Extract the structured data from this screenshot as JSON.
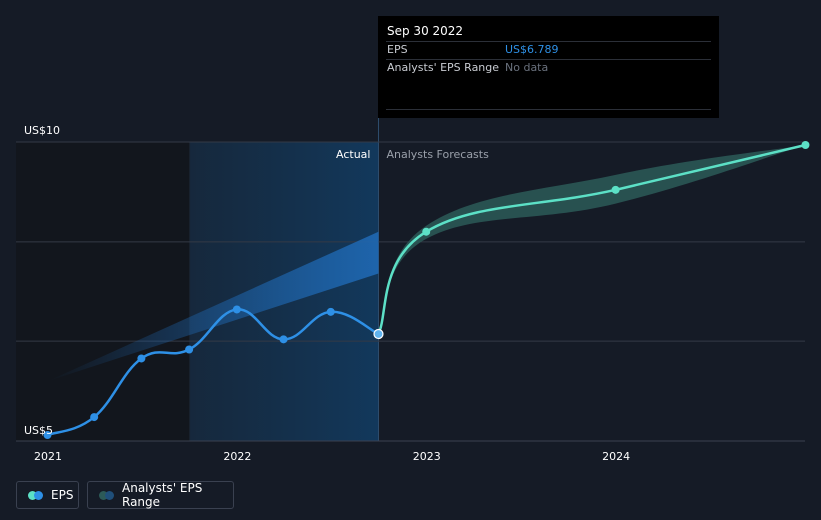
{
  "tooltip": {
    "date": "Sep 30 2022",
    "eps_label": "EPS",
    "eps_value": "US$6.789",
    "range_label": "Analysts' EPS Range",
    "range_value": "No data"
  },
  "colors": {
    "background": "#151b26",
    "actual": "#2e90e6",
    "forecast": "#5ce0c6",
    "forecast_band": "#2c5a58",
    "past_range_band": "#1f69b4"
  },
  "legend": {
    "eps_label": "EPS",
    "range_label": "Analysts' EPS Range"
  },
  "chart_data": {
    "type": "line",
    "y_tick_labels": [
      "US$10",
      "US$5"
    ],
    "x_tick_labels": [
      "2021",
      "2022",
      "2023",
      "2024"
    ],
    "ylim": [
      5,
      10
    ],
    "region_labels": {
      "actual": "Actual",
      "forecast": "Analysts Forecasts"
    },
    "highlight_date": "2022-09-30",
    "series": [
      {
        "name": "EPS",
        "segment": "actual",
        "points": [
          {
            "x": "2020-12-31",
            "y": 5.1
          },
          {
            "x": "2021-03-31",
            "y": 5.4
          },
          {
            "x": "2021-06-30",
            "y": 6.38
          },
          {
            "x": "2021-09-30",
            "y": 6.53
          },
          {
            "x": "2021-12-31",
            "y": 7.2
          },
          {
            "x": "2022-03-31",
            "y": 6.7
          },
          {
            "x": "2022-06-30",
            "y": 7.16
          },
          {
            "x": "2022-09-30",
            "y": 6.789
          }
        ]
      },
      {
        "name": "EPS",
        "segment": "forecast",
        "points": [
          {
            "x": "2022-09-30",
            "y": 6.789
          },
          {
            "x": "2022-12-31",
            "y": 8.5
          },
          {
            "x": "2023-12-31",
            "y": 9.2
          },
          {
            "x": "2024-12-31",
            "y": 9.95
          }
        ]
      }
    ],
    "forecast_range": {
      "points": [
        {
          "x": "2022-09-30",
          "low": 6.789,
          "high": 6.789
        },
        {
          "x": "2022-12-31",
          "low": 8.38,
          "high": 8.6
        },
        {
          "x": "2023-12-31",
          "low": 8.97,
          "high": 9.45
        },
        {
          "x": "2024-12-31",
          "low": 9.95,
          "high": 9.95
        }
      ]
    },
    "past_range": {
      "points": [
        {
          "x": "2020-12-31",
          "low": 6.0,
          "high": 6.0
        },
        {
          "x": "2022-09-30",
          "low": 7.8,
          "high": 8.5
        }
      ]
    }
  }
}
